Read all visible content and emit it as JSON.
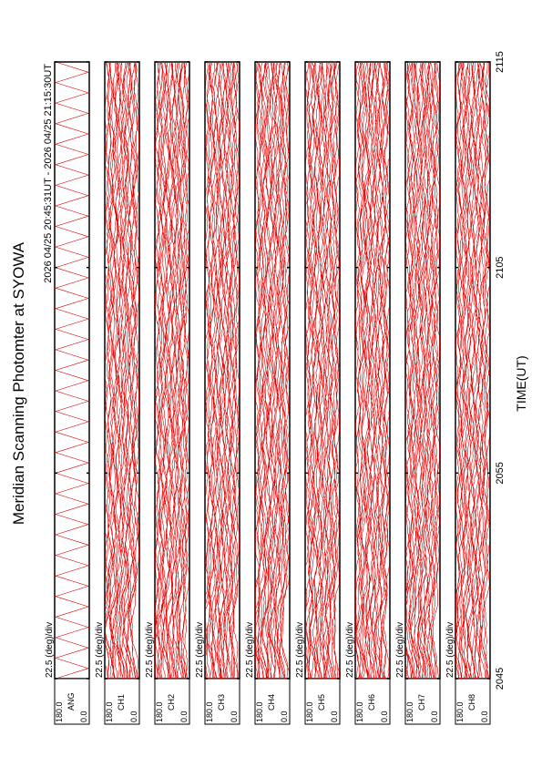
{
  "title": "Meridian Scanning Photomter at SYOWA",
  "subtitle": "2026 04/25 20:45:31UT - 2026 04/25 21:15:30UT",
  "axis": {
    "label": "TIME(UT)",
    "ticks": [
      "2045",
      "2055",
      "2105",
      "2115"
    ]
  },
  "panels": [
    {
      "name": "ANG",
      "scale": "22.5 (deg)/div",
      "top": "180.0",
      "bottom": "0.0"
    },
    {
      "name": "CH1",
      "scale": "22.5 (deg)/div",
      "top": "180.0",
      "bottom": "0.0"
    },
    {
      "name": "CH2",
      "scale": "22.5 (deg)/div",
      "top": "180.0",
      "bottom": "0.0"
    },
    {
      "name": "CH3",
      "scale": "22.5 (deg)/div",
      "top": "180.0",
      "bottom": "0.0"
    },
    {
      "name": "CH4",
      "scale": "22.5 (deg)/div",
      "top": "180.0",
      "bottom": "0.0"
    },
    {
      "name": "CH5",
      "scale": "22.5 (deg)/div",
      "top": "180.0",
      "bottom": "0.0"
    },
    {
      "name": "CH6",
      "scale": "22.5 (deg)/div",
      "top": "180.0",
      "bottom": "0.0"
    },
    {
      "name": "CH7",
      "scale": "22.5 (deg)/div",
      "top": "180.0",
      "bottom": "0.0"
    },
    {
      "name": "CH8",
      "scale": "22.5 (deg)/div",
      "top": "180.0",
      "bottom": "0.0"
    }
  ]
}
